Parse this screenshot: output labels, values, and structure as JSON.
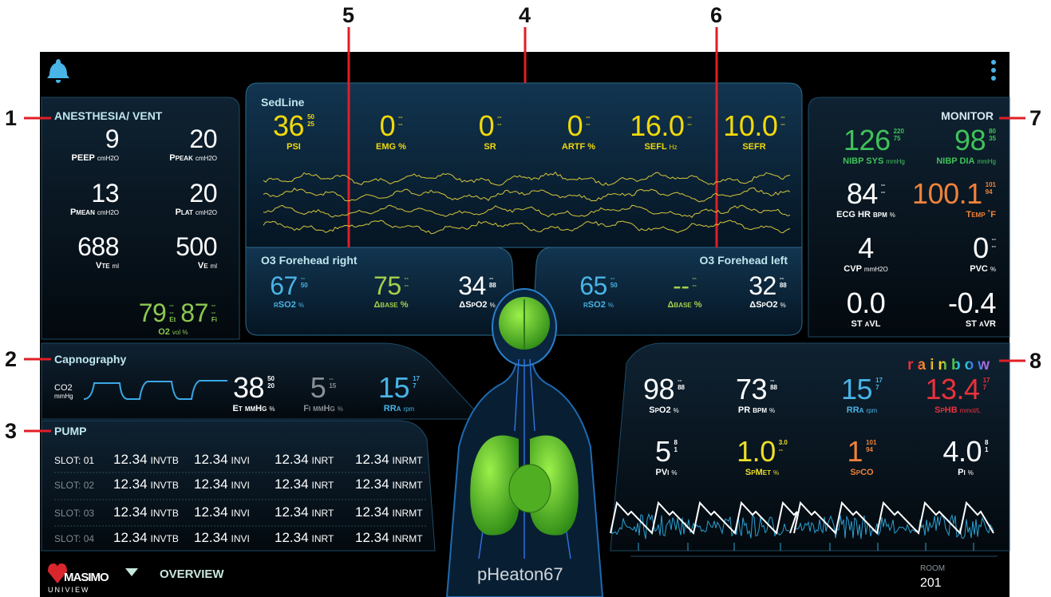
{
  "callouts": [
    "1",
    "2",
    "3",
    "4",
    "5",
    "6",
    "7",
    "8"
  ],
  "anesthesia": {
    "title": "ANESTHESIA/ VENT",
    "params": [
      {
        "value": "9",
        "label": "PEEP",
        "unit": "cmH2O",
        "color": "#ffffff"
      },
      {
        "value": "20",
        "label": "Ppeak",
        "unit": "cmH2O",
        "color": "#ffffff"
      },
      {
        "value": "13",
        "label": "Pmean",
        "unit": "cmH2O",
        "color": "#ffffff"
      },
      {
        "value": "20",
        "label": "Plat",
        "unit": "cmH2O",
        "color": "#ffffff"
      },
      {
        "value": "688",
        "label": "Vte",
        "unit": "ml",
        "color": "#ffffff"
      },
      {
        "value": "500",
        "label": "Ve",
        "unit": "ml",
        "color": "#ffffff"
      }
    ],
    "o2": {
      "et": "79",
      "et_limits": [
        "--",
        "--"
      ],
      "et_label": "Et",
      "fi": "87",
      "fi_limits": [
        "--",
        "--"
      ],
      "fi_label": "Fi",
      "label": "O2",
      "unit": "vol %",
      "color": "#8cc850"
    }
  },
  "sedline": {
    "title": "SedLine",
    "params": [
      {
        "value": "36",
        "limits": [
          "50",
          "25"
        ],
        "label": "PSI",
        "color": "#f2d90a"
      },
      {
        "value": "0",
        "limits": [
          "--",
          "--"
        ],
        "label": "EMG %",
        "color": "#f2d90a"
      },
      {
        "value": "0",
        "limits": [
          "--",
          "--"
        ],
        "label": "SR",
        "color": "#f2d90a"
      },
      {
        "value": "0",
        "limits": [
          "--",
          "--"
        ],
        "label": "ARTF %",
        "color": "#f2d90a"
      },
      {
        "value": "16.0",
        "limits": [
          "--",
          "--"
        ],
        "label": "SEFL",
        "unit": "Hz",
        "color": "#f2d90a"
      },
      {
        "value": "10.0",
        "limits": [
          "--",
          "--"
        ],
        "label": "SEFR",
        "color": "#f2d90a"
      }
    ]
  },
  "o3_right": {
    "title": "O3 Forehead right",
    "params": [
      {
        "value": "67",
        "limits": [
          "--",
          "50"
        ],
        "label": "rSO2",
        "unit": "%",
        "color": "#49b4e6"
      },
      {
        "value": "75",
        "limits": [
          "--",
          "--"
        ],
        "label": "Δbase %",
        "color": "#a6cf4a"
      },
      {
        "value": "34",
        "limits": [
          "--",
          "88"
        ],
        "label": "ΔSpO2",
        "unit": "%",
        "color": "#ffffff"
      }
    ]
  },
  "o3_left": {
    "title": "O3 Forehead left",
    "params": [
      {
        "value": "65",
        "limits": [
          "--",
          "50"
        ],
        "label": "rSO2",
        "unit": "%",
        "color": "#49b4e6"
      },
      {
        "value": "--",
        "limits": [
          "--",
          "--"
        ],
        "label": "Δbase %",
        "color": "#a6cf4a"
      },
      {
        "value": "32",
        "limits": [
          "--",
          "88"
        ],
        "label": "ΔSpO2",
        "unit": "%",
        "color": "#ffffff"
      }
    ]
  },
  "monitor": {
    "title": "MONITOR",
    "params": [
      {
        "value": "126",
        "limits": [
          "220",
          "75"
        ],
        "label": "NIBP SYS",
        "unit": "mmHg",
        "color": "#3fc25a"
      },
      {
        "value": "98",
        "limits": [
          "80",
          "35"
        ],
        "label": "NIBP DIA",
        "unit": "mmHg",
        "color": "#3fc25a"
      },
      {
        "value": "84",
        "limits": [
          "--",
          "--"
        ],
        "label": "ECG HR bpm",
        "unit": "%",
        "color": "#ffffff"
      },
      {
        "value": "100.1",
        "limits": [
          "101",
          "94"
        ],
        "label": "Temp ˚F",
        "color": "#f0823a"
      },
      {
        "value": "4",
        "label": "CVP",
        "unit": "mmH2O",
        "color": "#ffffff"
      },
      {
        "value": "0",
        "limits": [
          "--",
          "--"
        ],
        "label": "PVC",
        "unit": "%",
        "color": "#ffffff"
      },
      {
        "value": "0.0",
        "label": "ST aVL",
        "color": "#ffffff"
      },
      {
        "value": "-0.4",
        "label": "ST aVR",
        "color": "#ffffff"
      }
    ]
  },
  "capnography": {
    "title": "Capnography",
    "wave_label": "CO2",
    "wave_unit": "mmHg",
    "params": [
      {
        "value": "38",
        "limits": [
          "50",
          "20"
        ],
        "label": "Et mmHg",
        "unit": "%",
        "color": "#ffffff"
      },
      {
        "value": "5",
        "limits": [
          "--",
          "15"
        ],
        "label": "Fi mmHg",
        "unit": "%",
        "color": "#8a8f94"
      },
      {
        "value": "15",
        "limits": [
          "17",
          "7"
        ],
        "label": "RRa",
        "unit": "rpm",
        "color": "#49b4e6"
      }
    ]
  },
  "pump": {
    "title": "PUMP",
    "rows": [
      {
        "slot": "SLOT:",
        "number": "01",
        "items": [
          {
            "value": "12.34",
            "unit": "INVTB"
          },
          {
            "value": "12.34",
            "unit": "INVI"
          },
          {
            "value": "12.34",
            "unit": "INRT"
          },
          {
            "value": "12.34",
            "unit": "INRMT"
          }
        ]
      },
      {
        "slot": "SLOT:",
        "number": "02",
        "items": [
          {
            "value": "12.34",
            "unit": "INVTB"
          },
          {
            "value": "12.34",
            "unit": "INVI"
          },
          {
            "value": "12.34",
            "unit": "INRT"
          },
          {
            "value": "12.34",
            "unit": "INRMT"
          }
        ]
      },
      {
        "slot": "SLOT:",
        "number": "03",
        "items": [
          {
            "value": "12.34",
            "unit": "INVTB"
          },
          {
            "value": "12.34",
            "unit": "INVI"
          },
          {
            "value": "12.34",
            "unit": "INRT"
          },
          {
            "value": "12.34",
            "unit": "INRMT"
          }
        ]
      },
      {
        "slot": "SLOT:",
        "number": "04",
        "items": [
          {
            "value": "12.34",
            "unit": "INVTB"
          },
          {
            "value": "12.34",
            "unit": "INVI"
          },
          {
            "value": "12.34",
            "unit": "INRT"
          },
          {
            "value": "12.34",
            "unit": "INRMT"
          }
        ]
      }
    ]
  },
  "rainbow": {
    "title": "rainbow",
    "params": [
      {
        "value": "98",
        "limits": [
          "--",
          "88"
        ],
        "label": "SpO2",
        "unit": "%",
        "color": "#ffffff"
      },
      {
        "value": "73",
        "limits": [
          "--",
          "88"
        ],
        "label": "PR bpm",
        "unit": "%",
        "color": "#ffffff"
      },
      {
        "value": "15",
        "limits": [
          "17",
          "7"
        ],
        "label": "RRa",
        "unit": "rpm",
        "color": "#49b4e6"
      },
      {
        "value": "13.4",
        "limits": [
          "17",
          "7"
        ],
        "label": "SpHB",
        "unit": "mmol/L",
        "color": "#e8323a"
      },
      {
        "value": "5",
        "limits": [
          "8",
          "1"
        ],
        "label": "PVi",
        "unit": "%",
        "color": "#ffffff"
      },
      {
        "value": "1.0",
        "limits": [
          "3.0",
          "--"
        ],
        "label": "SpMet",
        "unit": "%",
        "color": "#ecdf2a"
      },
      {
        "value": "1",
        "limits": [
          "101",
          "94"
        ],
        "label": "SpCO",
        "color": "#f0823a"
      },
      {
        "value": "4.0",
        "limits": [
          "8",
          "1"
        ],
        "label": "Pi",
        "unit": "%",
        "color": "#ffffff"
      }
    ]
  },
  "footer": {
    "brand": "MASIMO",
    "product": "UNIVIEW",
    "nav": "OVERVIEW",
    "patient": "pHeaton67",
    "room_label": "ROOM",
    "room": "201"
  }
}
